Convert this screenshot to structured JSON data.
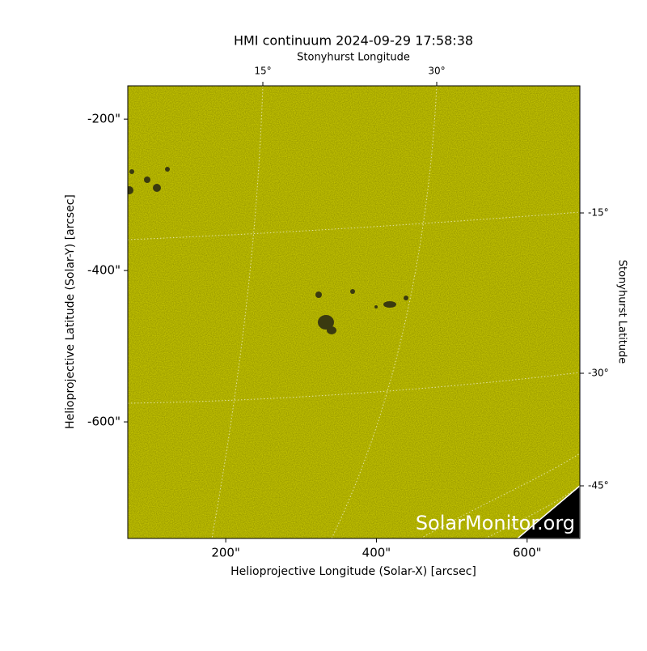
{
  "chart_data": {
    "type": "image",
    "title": "HMI continuum 2024-09-29 17:58:38",
    "xlabel": "Helioprojective Longitude (Solar-X) [arcsec]",
    "ylabel": "Helioprojective Latitude (Solar-Y) [arcsec]",
    "top_label": "Stonyhurst Longitude",
    "right_label": "Stonyhurst Latitude",
    "xlim": [
      70,
      670
    ],
    "ylim": [
      -754,
      -156
    ],
    "xticks": [
      {
        "value": 200,
        "label": "200\""
      },
      {
        "value": 400,
        "label": "400\""
      },
      {
        "value": 600,
        "label": "600\""
      }
    ],
    "yticks": [
      {
        "value": -200,
        "label": "-200\""
      },
      {
        "value": -400,
        "label": "-400\""
      },
      {
        "value": -600,
        "label": "-600\""
      }
    ],
    "top_ticks": [
      {
        "value": 15,
        "label": "15°"
      },
      {
        "value": 30,
        "label": "30°"
      }
    ],
    "right_ticks": [
      {
        "value": -15,
        "label": "-15°"
      },
      {
        "value": -30,
        "label": "-30°"
      },
      {
        "value": -45,
        "label": "-45°"
      }
    ],
    "color": "#c8c800",
    "watermark": "SolarMonitor.org"
  }
}
